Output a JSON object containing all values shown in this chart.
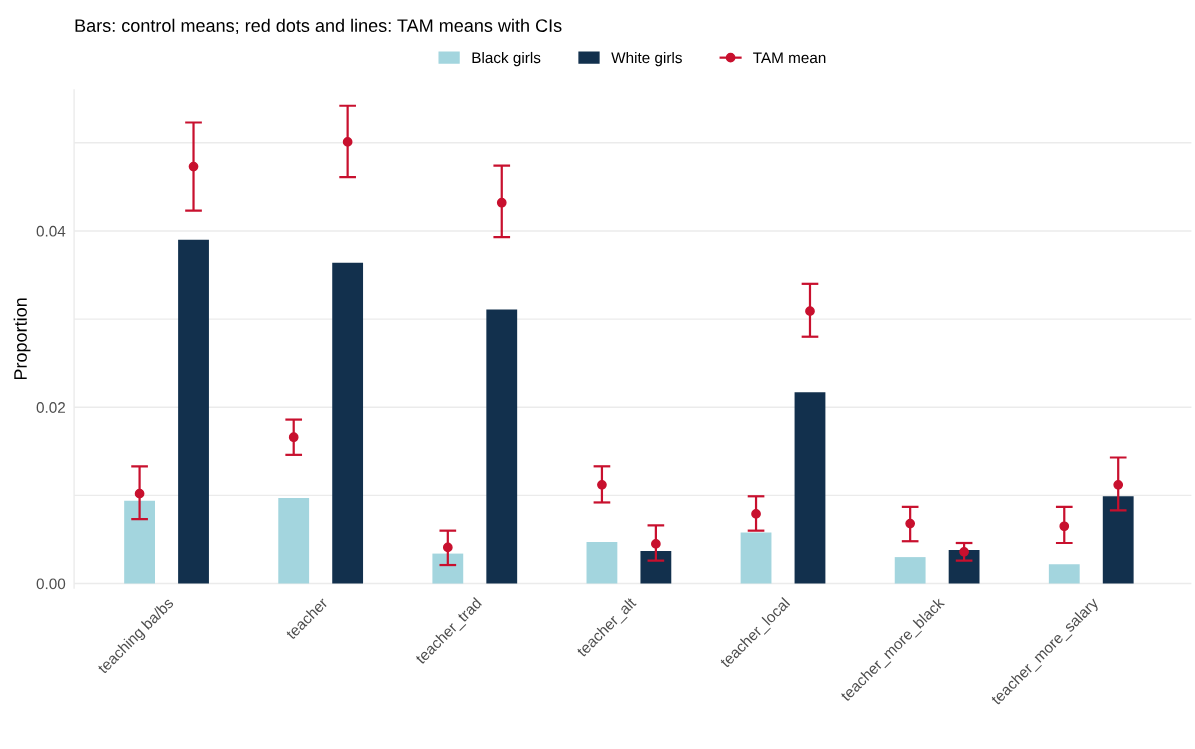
{
  "chart_data": {
    "type": "bar",
    "title": "Bars: control means; red dots and lines: TAM means with CIs",
    "ylabel": "Proportion",
    "categories": [
      "teaching ba/bs",
      "teacher",
      "teacher_trad",
      "teacher_alt",
      "teacher_local",
      "teacher_more_black",
      "teacher_more_salary"
    ],
    "series": [
      {
        "name": "Black girls",
        "color": "#a3d5de",
        "values": [
          0.0094,
          0.0097,
          0.0034,
          0.0047,
          0.0058,
          0.003,
          0.0022
        ]
      },
      {
        "name": "White girls",
        "color": "#12304d",
        "values": [
          0.039,
          0.0364,
          0.0311,
          0.0037,
          0.0217,
          0.0038,
          0.0099
        ]
      },
      {
        "name": "TAM mean",
        "type": "scatter",
        "color": "#c8102e",
        "x": [
          "teaching ba/bs",
          "teacher",
          "teacher_trad",
          "teacher_alt",
          "teacher_local",
          "teacher_more_black",
          "teacher_more_salary"
        ],
        "values": [
          0.0102,
          0.0166,
          0.0041,
          0.0112,
          0.0079,
          0.0068,
          0.0065
        ],
        "errors": [
          [
            0.0073,
            0.0133
          ],
          [
            0.0146,
            0.0186
          ],
          [
            0.0021,
            0.006
          ],
          [
            0.0092,
            0.0133
          ],
          [
            0.006,
            0.0099
          ],
          [
            0.0048,
            0.0087
          ],
          [
            0.0046,
            0.0087
          ]
        ]
      },
      {
        "type": "scatter",
        "color": "#c8102e",
        "x": [
          "teaching ba/bs",
          "teacher",
          "teacher_trad",
          "teacher_alt",
          "teacher_local",
          "teacher_more_black",
          "teacher_more_salary"
        ],
        "values": [
          0.0473,
          0.0501,
          0.0432,
          0.0045,
          0.0309,
          0.0036,
          0.0112
        ],
        "errors": [
          [
            0.0423,
            0.0523
          ],
          [
            0.0461,
            0.0542
          ],
          [
            0.0393,
            0.0474
          ],
          [
            0.0026,
            0.0066
          ],
          [
            0.028,
            0.034
          ],
          [
            0.0026,
            0.0046
          ],
          [
            0.0083,
            0.0143
          ]
        ]
      }
    ],
    "ylim": [
      -0.0005,
      0.056
    ],
    "yticks": [
      {
        "value": 0,
        "label": "0.00"
      },
      {
        "value": 0.01,
        "label": null
      },
      {
        "value": 0.02,
        "label": "0.02"
      },
      {
        "value": 0.03,
        "label": null
      },
      {
        "value": 0.04,
        "label": "0.04"
      },
      {
        "value": 0.05,
        "label": null
      }
    ],
    "grid": "y",
    "legend": "top",
    "marker": "circle"
  }
}
